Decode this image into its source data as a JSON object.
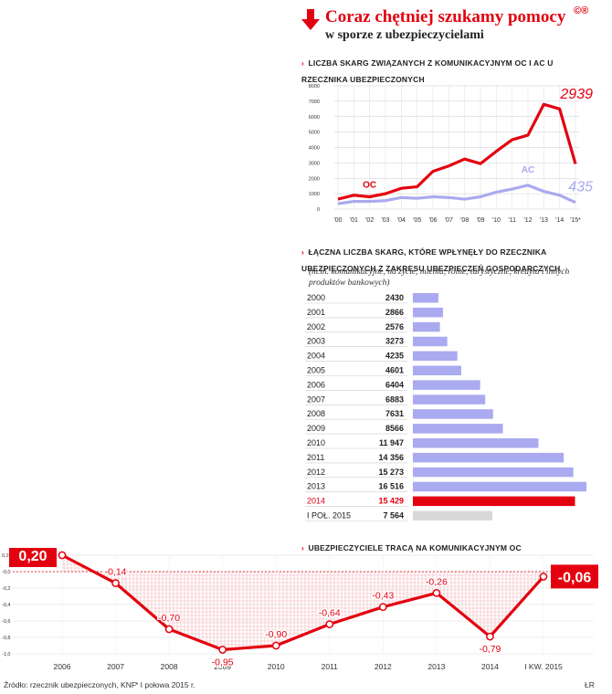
{
  "header": {
    "title": "Coraz chętniej szukamy pomocy",
    "subtitle": "w sporze z ubezpieczycielami",
    "logo": "©®"
  },
  "colors": {
    "red": "#e3000f",
    "lavender": "#aaaaf0",
    "gray": "#d8d8d8"
  },
  "chart_data": [
    {
      "type": "line",
      "title": "Liczba skarg związanych z komunikacyjnym OC i AC u rzecznika ubezpieczonych",
      "x": [
        "'00",
        "'01",
        "'02",
        "'03",
        "'04",
        "'05",
        "'06",
        "'07",
        "'08",
        "'09",
        "'10",
        "'11",
        "'12",
        "'13",
        "'14",
        "'15*"
      ],
      "yticks": [
        "8000",
        "7000",
        "6000",
        "5000",
        "4000",
        "3000",
        "2000",
        "1000",
        "0"
      ],
      "ylim": [
        0,
        8000
      ],
      "series": [
        {
          "name": "OC",
          "color": "#e3000f",
          "values": [
            650,
            900,
            800,
            1000,
            1350,
            1450,
            2450,
            2800,
            3250,
            2950,
            3750,
            4500,
            4800,
            6800,
            6500,
            2939
          ]
        },
        {
          "name": "AC",
          "color": "#aaaaf0",
          "values": [
            350,
            500,
            500,
            550,
            750,
            700,
            800,
            750,
            650,
            800,
            1100,
            1300,
            1550,
            1150,
            900,
            435
          ]
        }
      ],
      "end_labels": [
        "2939",
        "435"
      ]
    },
    {
      "type": "bar",
      "title": "Łączna liczba skarg, które wpłynęły do rzecznika ubezpieczonych z zakresu ubezpieczeń gospodarczych",
      "categories": [
        "2000",
        "2001",
        "2002",
        "2003",
        "2004",
        "2005",
        "2006",
        "2007",
        "2008",
        "2009",
        "2010",
        "2011",
        "2012",
        "2013",
        "2014",
        "I POŁ. 2015"
      ],
      "values": [
        2430,
        2866,
        2576,
        3273,
        4235,
        4601,
        6404,
        6883,
        7631,
        8566,
        11947,
        14356,
        15273,
        16516,
        15429,
        7564
      ],
      "value_labels": [
        "2430",
        "2866",
        "2576",
        "3273",
        "4235",
        "4601",
        "6404",
        "6883",
        "7631",
        "8566",
        "11 947",
        "14 356",
        "15 273",
        "16 516",
        "15 429",
        "7 564"
      ],
      "highlight_index": 14,
      "note": "(m.in. komunikacyjne, na życie, mienia, rolne, turystyczne, kredytu i innych produktów bankowych)"
    },
    {
      "type": "line",
      "title": "Ubezpieczyciele tracą na komunikacyjnym OC",
      "x": [
        "2006",
        "2007",
        "2008",
        "2009",
        "2010",
        "2011",
        "2012",
        "2013",
        "2014",
        "I KW. 2015"
      ],
      "values": [
        0.2,
        -0.14,
        -0.7,
        -0.95,
        -0.9,
        -0.64,
        -0.43,
        -0.26,
        -0.79,
        -0.06
      ],
      "labels": [
        "0,20",
        "-0,14",
        "-0,70",
        "-0,95",
        "-0,90",
        "-0,64",
        "-0,43",
        "-0,26",
        "-0,79",
        "-0,06"
      ],
      "yticks": [
        "0,2",
        "-0,0",
        "-0,2",
        "-0,4",
        "-0,6",
        "-0,8",
        "-1,0"
      ],
      "ylim": [
        -1.0,
        0.2
      ]
    }
  ],
  "footer": {
    "source": "Źródło: rzecznik ubezpieczonych, KNF",
    "footnote": "* I połowa 2015 r.",
    "credit": "ŁR"
  }
}
